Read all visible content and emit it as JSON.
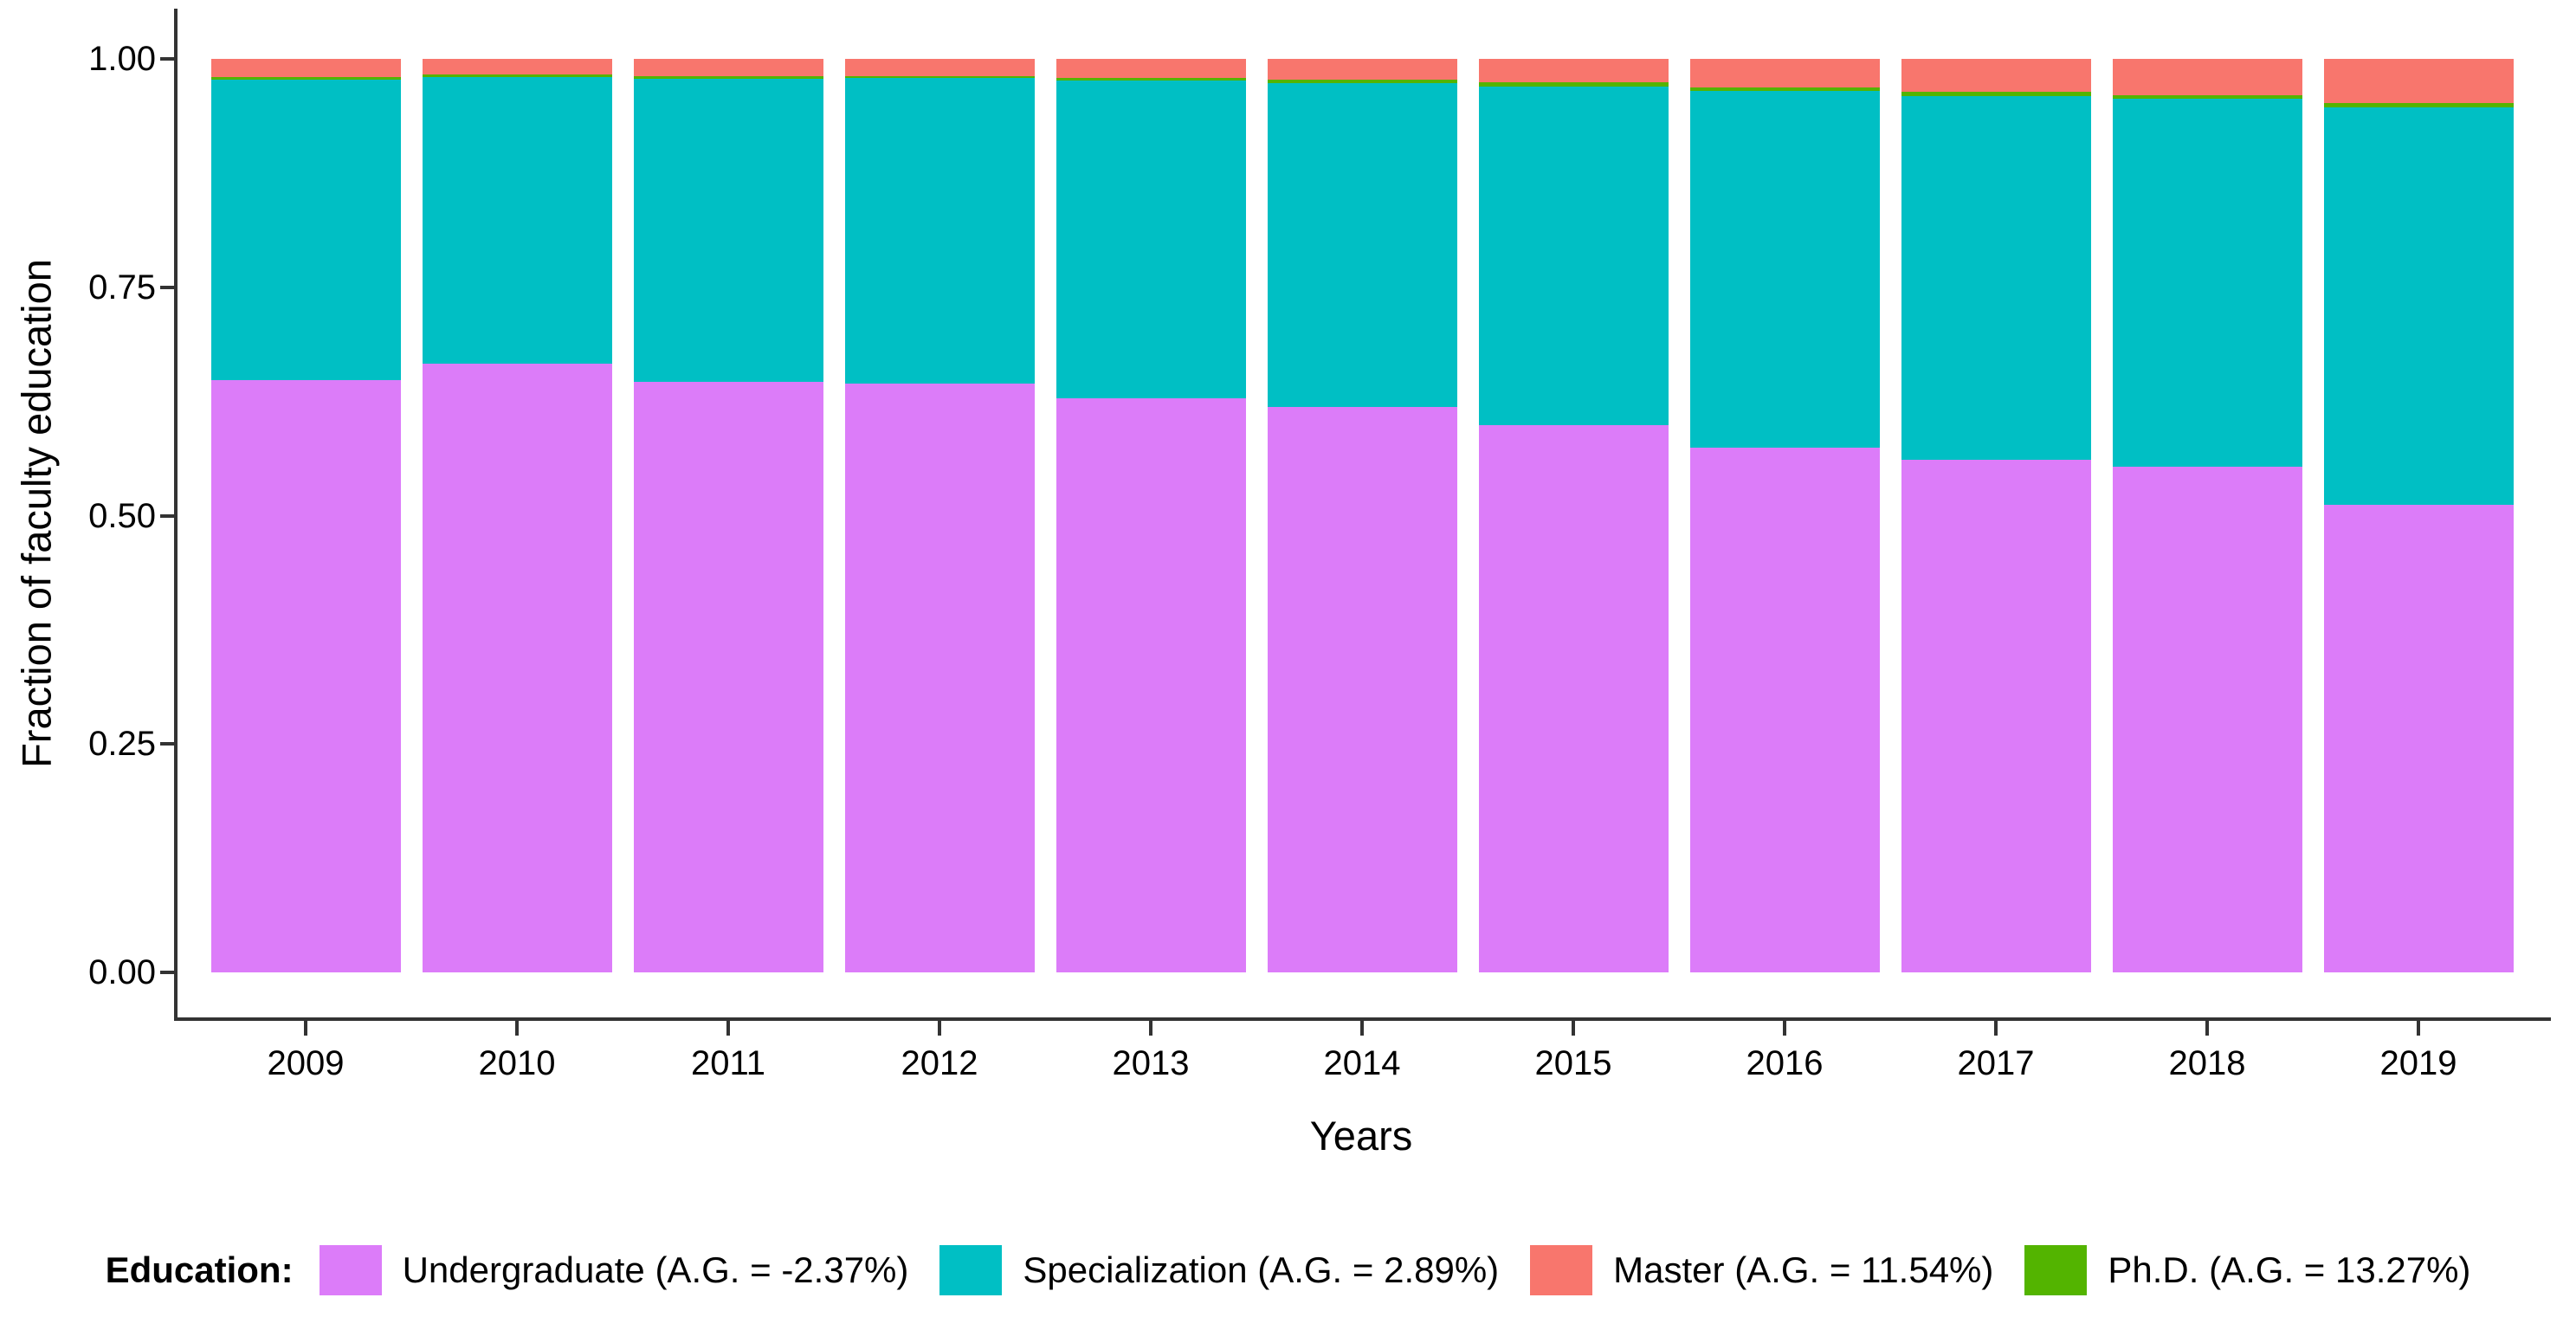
{
  "chart_data": {
    "type": "bar",
    "stacked": true,
    "title": "",
    "xlabel": "Years",
    "ylabel": "Fraction of faculty education",
    "ylim": [
      0,
      1
    ],
    "grid": false,
    "legend_position": "bottom",
    "legend_title": "Education:",
    "categories": [
      "2009",
      "2010",
      "2011",
      "2012",
      "2013",
      "2014",
      "2015",
      "2016",
      "2017",
      "2018",
      "2019"
    ],
    "series": [
      {
        "name": "Undergraduate",
        "legend_label": "Undergraduate (A.G. = -2.37%)",
        "color": "#DC7CF9",
        "values": [
          0.648,
          0.666,
          0.646,
          0.645,
          0.628,
          0.619,
          0.599,
          0.574,
          0.561,
          0.554,
          0.512
        ]
      },
      {
        "name": "Specialization",
        "legend_label": "Specialization (A.G. = 2.89%)",
        "color": "#00BFC4",
        "values": [
          0.329,
          0.314,
          0.332,
          0.334,
          0.348,
          0.354,
          0.371,
          0.391,
          0.398,
          0.402,
          0.435
        ]
      },
      {
        "name": "Ph.D.",
        "legend_label": "Ph.D. (A.G. = 13.27%)",
        "color": "#53B400",
        "values": [
          0.003,
          0.003,
          0.003,
          0.002,
          0.003,
          0.004,
          0.004,
          0.004,
          0.005,
          0.004,
          0.005
        ]
      },
      {
        "name": "Master",
        "legend_label": "Master (A.G. = 11.54%)",
        "color": "#F8766D",
        "values": [
          0.02,
          0.017,
          0.019,
          0.019,
          0.021,
          0.023,
          0.026,
          0.031,
          0.036,
          0.04,
          0.048
        ]
      }
    ],
    "legend_order": [
      "Undergraduate",
      "Specialization",
      "Master",
      "Ph.D."
    ],
    "y_ticks": [
      {
        "label": "0.00",
        "value": 0.0
      },
      {
        "label": "0.25",
        "value": 0.25
      },
      {
        "label": "0.50",
        "value": 0.5
      },
      {
        "label": "0.75",
        "value": 0.75
      },
      {
        "label": "1.00",
        "value": 1.0
      }
    ]
  }
}
